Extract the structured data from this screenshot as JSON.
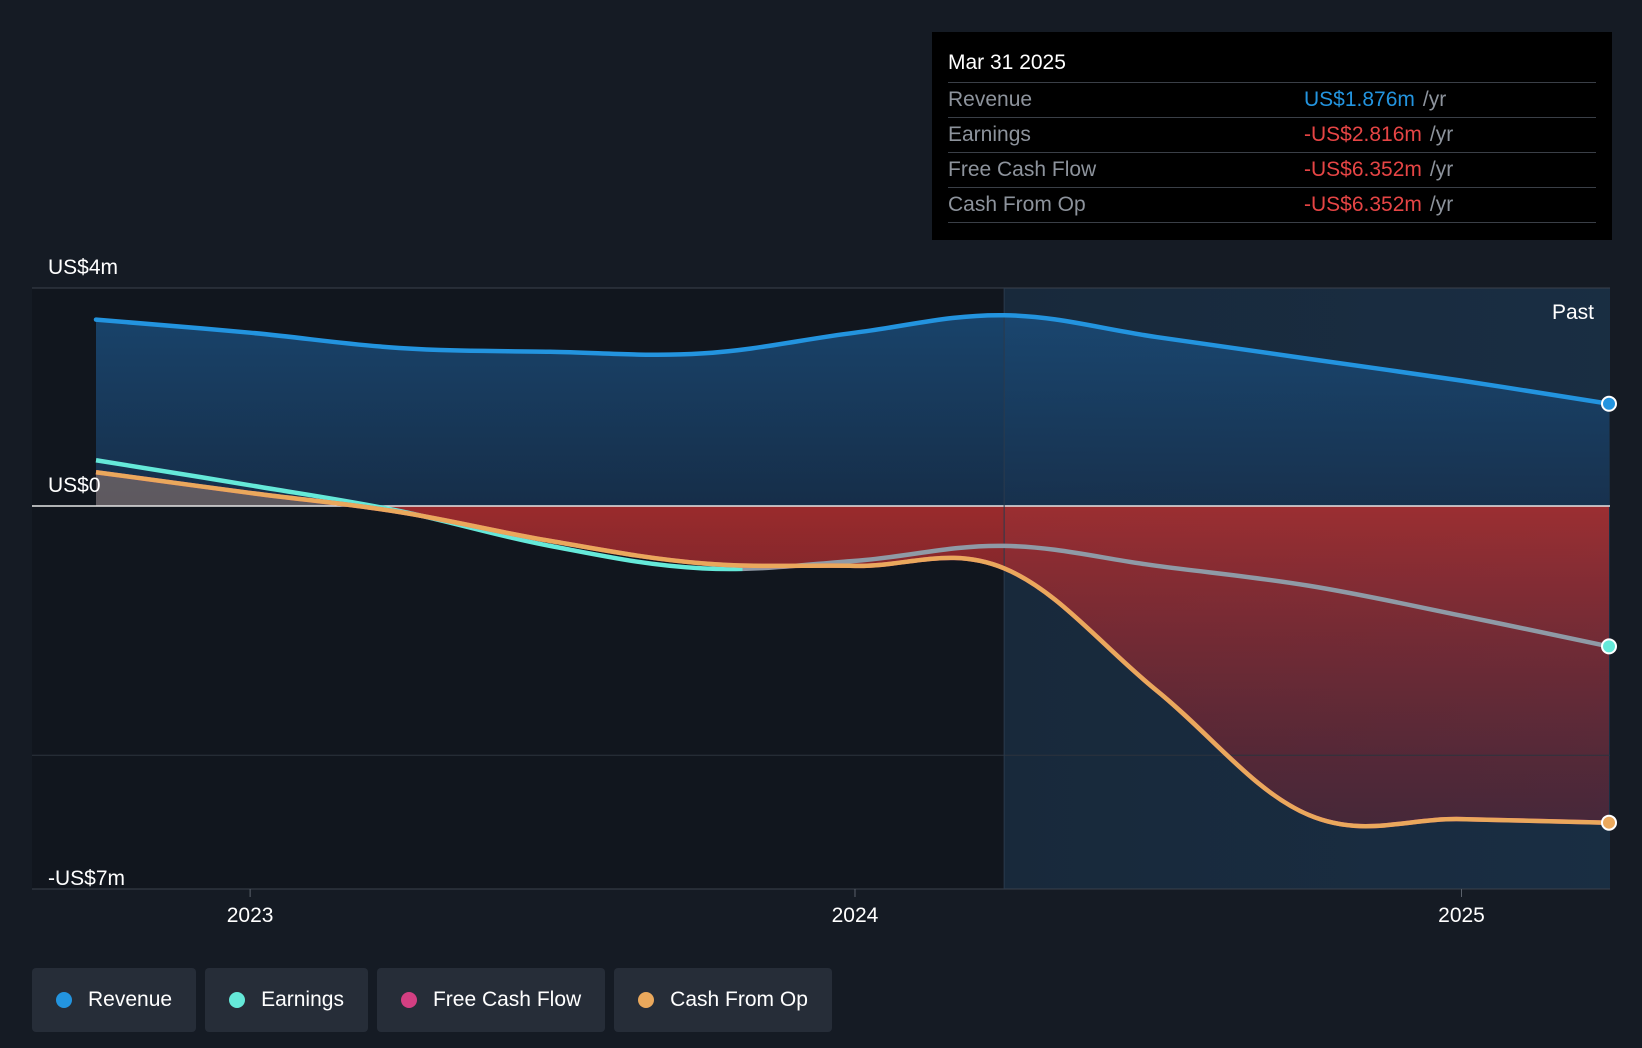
{
  "colors": {
    "background": "#151b24",
    "revenue": "#2394df",
    "earnings": "#65e9d9",
    "free_cash_flow": "#d33f82",
    "cash_from_op": "#eaa85c",
    "earnings_negative": "#8f9aa6",
    "positive_value": "#2394df",
    "negative_value": "#e64545"
  },
  "tooltip": {
    "date": "Mar 31 2025",
    "rows": [
      {
        "label": "Revenue",
        "value": "US$1.876m",
        "unit": "/yr",
        "sign": "positive"
      },
      {
        "label": "Earnings",
        "value": "-US$2.816m",
        "unit": "/yr",
        "sign": "negative"
      },
      {
        "label": "Free Cash Flow",
        "value": "-US$6.352m",
        "unit": "/yr",
        "sign": "negative"
      },
      {
        "label": "Cash From Op",
        "value": "-US$6.352m",
        "unit": "/yr",
        "sign": "negative"
      }
    ]
  },
  "chart_data": {
    "type": "area",
    "title": "",
    "xlabel": "",
    "ylabel": "",
    "x_range": [
      "2022-09-30",
      "2025-03-31"
    ],
    "ylim": [
      -7,
      4
    ],
    "y_tick_labels": [
      {
        "value": 4,
        "label": "US$4m"
      },
      {
        "value": 0,
        "label": "US$0"
      },
      {
        "value": -7,
        "label": "-US$7m"
      }
    ],
    "x_ticks": [
      {
        "x": "2023-01-01",
        "label": "2023"
      },
      {
        "x": "2024-01-01",
        "label": "2024"
      },
      {
        "x": "2025-01-01",
        "label": "2025"
      }
    ],
    "past_marker": {
      "x": "2024-03-31",
      "label": "Past"
    },
    "x": [
      "2022-09-30",
      "2023-01-01",
      "2023-04-01",
      "2023-07-01",
      "2023-10-01",
      "2024-01-01",
      "2024-03-31",
      "2024-07-01",
      "2024-10-01",
      "2025-01-01",
      "2025-03-31"
    ],
    "series": [
      {
        "name": "Revenue",
        "color_key": "revenue",
        "values": [
          3.42,
          3.18,
          2.9,
          2.83,
          2.8,
          3.18,
          3.5,
          3.1,
          2.7,
          2.3,
          1.876
        ]
      },
      {
        "name": "Earnings",
        "color_key": "earnings",
        "values": [
          0.84,
          0.38,
          -0.1,
          -0.8,
          -1.25,
          -1.1,
          -0.8,
          -1.2,
          -1.6,
          -2.2,
          -2.816
        ]
      },
      {
        "name": "Free Cash Flow",
        "color_key": "free_cash_flow",
        "values": [
          0.62,
          0.24,
          -0.12,
          -0.7,
          -1.15,
          -1.2,
          -1.25,
          -3.7,
          -6.2,
          -6.28,
          -6.352
        ]
      },
      {
        "name": "Cash From Op",
        "color_key": "cash_from_op",
        "values": [
          0.62,
          0.24,
          -0.12,
          -0.7,
          -1.15,
          -1.2,
          -1.25,
          -3.7,
          -6.2,
          -6.28,
          -6.352
        ]
      }
    ],
    "legend_position": "bottom-left",
    "grid": true
  },
  "legend": [
    {
      "label": "Revenue",
      "color_key": "revenue"
    },
    {
      "label": "Earnings",
      "color_key": "earnings"
    },
    {
      "label": "Free Cash Flow",
      "color_key": "free_cash_flow"
    },
    {
      "label": "Cash From Op",
      "color_key": "cash_from_op"
    }
  ]
}
